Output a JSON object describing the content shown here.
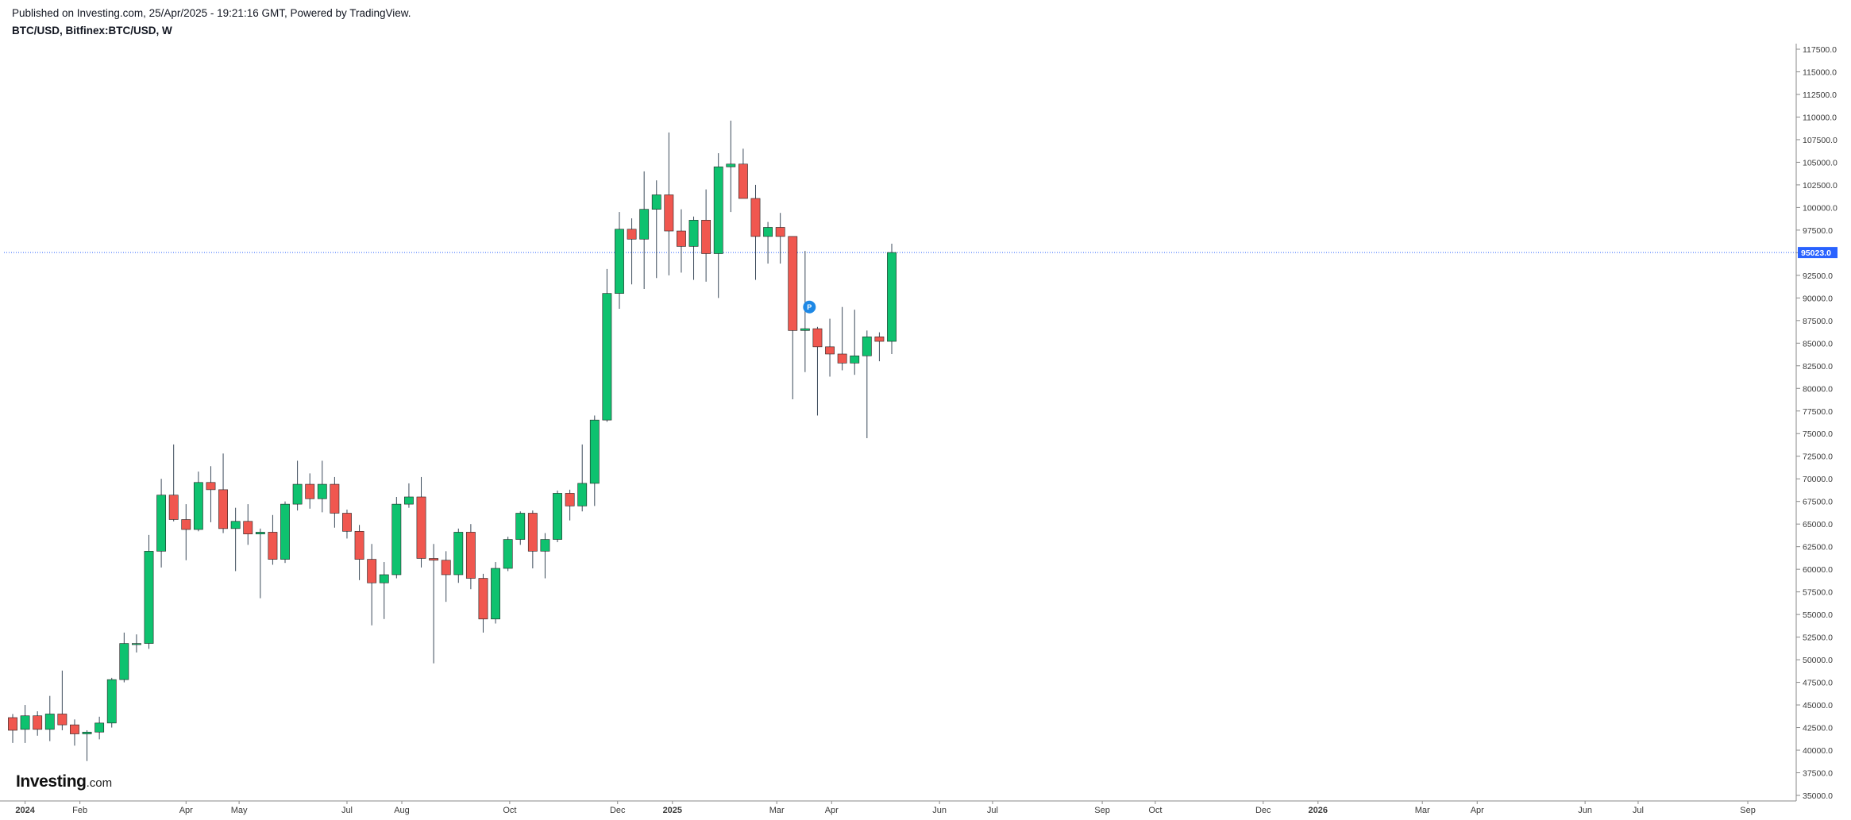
{
  "header": {
    "published": "Published on Investing.com, 25/Apr/2025 - 19:21:16 GMT, Powered by TradingView.",
    "symbol": "BTC/USD, Bitfinex:BTC/USD, W"
  },
  "logo": {
    "main": "Investing",
    "suffix": ".com"
  },
  "colors": {
    "up": "#0ec26f",
    "down": "#f0574f",
    "wick": "#3b4a5a",
    "price_line": "#2962ff",
    "price_tag": "#2962ff",
    "marker": "#1e88e5",
    "axis": "#8a8a8a"
  },
  "marker": {
    "label": "P",
    "date": "2025-03-10",
    "price": 89000
  },
  "chart_data": {
    "type": "candlestick",
    "interval": "W",
    "ylim": [
      34000,
      118500
    ],
    "ytick_step": 2500,
    "yticks_from": 35000,
    "yticks_to": 117500,
    "last_price": 95023,
    "last_price_label": "95023.0",
    "x_start": "2023-12-25",
    "x_end": "2026-09-14",
    "x_labels": [
      {
        "date": "2024-01-01",
        "text": "2024",
        "year": true
      },
      {
        "date": "2024-02-01",
        "text": "Feb"
      },
      {
        "date": "2024-04-01",
        "text": "Apr"
      },
      {
        "date": "2024-05-01",
        "text": "May"
      },
      {
        "date": "2024-07-01",
        "text": "Jul"
      },
      {
        "date": "2024-08-01",
        "text": "Aug"
      },
      {
        "date": "2024-10-01",
        "text": "Oct"
      },
      {
        "date": "2024-12-01",
        "text": "Dec"
      },
      {
        "date": "2025-01-01",
        "text": "2025",
        "year": true
      },
      {
        "date": "2025-03-01",
        "text": "Mar"
      },
      {
        "date": "2025-04-01",
        "text": "Apr"
      },
      {
        "date": "2025-06-01",
        "text": "Jun"
      },
      {
        "date": "2025-07-01",
        "text": "Jul"
      },
      {
        "date": "2025-09-01",
        "text": "Sep"
      },
      {
        "date": "2025-10-01",
        "text": "Oct"
      },
      {
        "date": "2025-12-01",
        "text": "Dec"
      },
      {
        "date": "2026-01-01",
        "text": "2026",
        "year": true
      },
      {
        "date": "2026-03-01",
        "text": "Mar"
      },
      {
        "date": "2026-04-01",
        "text": "Apr"
      },
      {
        "date": "2026-06-01",
        "text": "Jun"
      },
      {
        "date": "2026-07-01",
        "text": "Jul"
      },
      {
        "date": "2026-09-01",
        "text": "Sep"
      }
    ],
    "candles": [
      {
        "date": "2023-12-25",
        "o": 43600,
        "h": 44000,
        "l": 40800,
        "c": 42200
      },
      {
        "date": "2024-01-01",
        "o": 42300,
        "h": 45000,
        "l": 40800,
        "c": 43800
      },
      {
        "date": "2024-01-08",
        "o": 43800,
        "h": 44300,
        "l": 41600,
        "c": 42300
      },
      {
        "date": "2024-01-15",
        "o": 42300,
        "h": 46000,
        "l": 41000,
        "c": 44000
      },
      {
        "date": "2024-01-22",
        "o": 44000,
        "h": 48800,
        "l": 42200,
        "c": 42800
      },
      {
        "date": "2024-01-29",
        "o": 42800,
        "h": 43400,
        "l": 40500,
        "c": 41800
      },
      {
        "date": "2024-02-05",
        "o": 41800,
        "h": 42200,
        "l": 38800,
        "c": 42000
      },
      {
        "date": "2024-02-12",
        "o": 42000,
        "h": 43700,
        "l": 41200,
        "c": 43000
      },
      {
        "date": "2024-02-19",
        "o": 43000,
        "h": 48000,
        "l": 42500,
        "c": 47800
      },
      {
        "date": "2024-02-26",
        "o": 47800,
        "h": 53000,
        "l": 47500,
        "c": 51800
      },
      {
        "date": "2024-03-04",
        "o": 51800,
        "h": 52800,
        "l": 50800,
        "c": 51800
      },
      {
        "date": "2024-03-11",
        "o": 51800,
        "h": 63800,
        "l": 51200,
        "c": 62000
      },
      {
        "date": "2024-03-18",
        "o": 62000,
        "h": 70000,
        "l": 60200,
        "c": 68200
      },
      {
        "date": "2024-03-25",
        "o": 68200,
        "h": 73800,
        "l": 65300,
        "c": 65500
      },
      {
        "date": "2024-04-01",
        "o": 65500,
        "h": 67200,
        "l": 61000,
        "c": 64400
      },
      {
        "date": "2024-04-08",
        "o": 64400,
        "h": 70800,
        "l": 64200,
        "c": 69600
      },
      {
        "date": "2024-04-15",
        "o": 69600,
        "h": 71400,
        "l": 65200,
        "c": 68800
      },
      {
        "date": "2024-04-22",
        "o": 68800,
        "h": 72800,
        "l": 64000,
        "c": 64500
      },
      {
        "date": "2024-04-29",
        "o": 64500,
        "h": 66800,
        "l": 59800,
        "c": 65300
      },
      {
        "date": "2024-05-06",
        "o": 65300,
        "h": 67200,
        "l": 62700,
        "c": 63900
      },
      {
        "date": "2024-05-13",
        "o": 63900,
        "h": 64500,
        "l": 56800,
        "c": 64100
      },
      {
        "date": "2024-05-20",
        "o": 64100,
        "h": 66000,
        "l": 60500,
        "c": 61100
      },
      {
        "date": "2024-05-27",
        "o": 61100,
        "h": 67500,
        "l": 60700,
        "c": 67200
      },
      {
        "date": "2024-06-03",
        "o": 67200,
        "h": 72000,
        "l": 66500,
        "c": 69400
      },
      {
        "date": "2024-06-10",
        "o": 69400,
        "h": 70600,
        "l": 66700,
        "c": 67800
      },
      {
        "date": "2024-06-17",
        "o": 67800,
        "h": 72000,
        "l": 66300,
        "c": 69400
      },
      {
        "date": "2024-06-24",
        "o": 69400,
        "h": 70200,
        "l": 64600,
        "c": 66200
      },
      {
        "date": "2024-07-01",
        "o": 66200,
        "h": 66600,
        "l": 63400,
        "c": 64200
      },
      {
        "date": "2024-07-08",
        "o": 64200,
        "h": 64900,
        "l": 58800,
        "c": 61100
      },
      {
        "date": "2024-07-15",
        "o": 61100,
        "h": 62800,
        "l": 53800,
        "c": 58500
      },
      {
        "date": "2024-07-22",
        "o": 58500,
        "h": 60800,
        "l": 54500,
        "c": 59400
      },
      {
        "date": "2024-07-29",
        "o": 59400,
        "h": 68000,
        "l": 59000,
        "c": 67200
      },
      {
        "date": "2024-08-05",
        "o": 67200,
        "h": 69500,
        "l": 66800,
        "c": 68000
      },
      {
        "date": "2024-08-12",
        "o": 68000,
        "h": 70200,
        "l": 60200,
        "c": 61200
      },
      {
        "date": "2024-08-19",
        "o": 61200,
        "h": 62800,
        "l": 49600,
        "c": 61000
      },
      {
        "date": "2024-08-26",
        "o": 61000,
        "h": 62000,
        "l": 56400,
        "c": 59400
      },
      {
        "date": "2024-09-02",
        "o": 59400,
        "h": 64500,
        "l": 58500,
        "c": 64100
      },
      {
        "date": "2024-09-09",
        "o": 64100,
        "h": 65000,
        "l": 57800,
        "c": 59000
      },
      {
        "date": "2024-09-16",
        "o": 59000,
        "h": 59500,
        "l": 53000,
        "c": 54500
      },
      {
        "date": "2024-09-23",
        "o": 54500,
        "h": 60800,
        "l": 54000,
        "c": 60100
      },
      {
        "date": "2024-09-30",
        "o": 60100,
        "h": 63600,
        "l": 59800,
        "c": 63300
      },
      {
        "date": "2024-10-07",
        "o": 63300,
        "h": 66400,
        "l": 62700,
        "c": 66200
      },
      {
        "date": "2024-10-14",
        "o": 66200,
        "h": 66500,
        "l": 60100,
        "c": 62000
      },
      {
        "date": "2024-10-21",
        "o": 62000,
        "h": 64000,
        "l": 59000,
        "c": 63300
      },
      {
        "date": "2024-10-28",
        "o": 63300,
        "h": 68700,
        "l": 63000,
        "c": 68400
      },
      {
        "date": "2024-11-04",
        "o": 68400,
        "h": 68800,
        "l": 65400,
        "c": 67000
      },
      {
        "date": "2024-11-11",
        "o": 67000,
        "h": 73800,
        "l": 66400,
        "c": 69500
      },
      {
        "date": "2024-11-18",
        "o": 69500,
        "h": 77000,
        "l": 67000,
        "c": 76500
      },
      {
        "date": "2024-11-25",
        "o": 76500,
        "h": 93200,
        "l": 76300,
        "c": 90500
      },
      {
        "date": "2024-12-02",
        "o": 90500,
        "h": 99500,
        "l": 88800,
        "c": 97600
      },
      {
        "date": "2024-12-09",
        "o": 97600,
        "h": 98800,
        "l": 91500,
        "c": 96500
      },
      {
        "date": "2024-12-16",
        "o": 96500,
        "h": 104000,
        "l": 91000,
        "c": 99800
      },
      {
        "date": "2024-12-23",
        "o": 99800,
        "h": 103000,
        "l": 92200,
        "c": 101400
      },
      {
        "date": "2024-12-30",
        "o": 101400,
        "h": 108300,
        "l": 92500,
        "c": 97400
      },
      {
        "date": "2025-01-06",
        "o": 97400,
        "h": 99800,
        "l": 92800,
        "c": 95700
      },
      {
        "date": "2025-01-13",
        "o": 95700,
        "h": 99000,
        "l": 92000,
        "c": 98600
      },
      {
        "date": "2025-01-20",
        "o": 98600,
        "h": 102000,
        "l": 91800,
        "c": 94900
      },
      {
        "date": "2025-01-27",
        "o": 94900,
        "h": 106000,
        "l": 90000,
        "c": 104500
      },
      {
        "date": "2025-02-03",
        "o": 104500,
        "h": 109600,
        "l": 99500,
        "c": 104800
      },
      {
        "date": "2025-02-10",
        "o": 104800,
        "h": 106500,
        "l": 101000,
        "c": 101000
      },
      {
        "date": "2025-02-17",
        "o": 101000,
        "h": 102500,
        "l": 92000,
        "c": 96800
      },
      {
        "date": "2025-02-24",
        "o": 96800,
        "h": 98400,
        "l": 93800,
        "c": 97800
      },
      {
        "date": "2025-03-03",
        "o": 97800,
        "h": 99400,
        "l": 93800,
        "c": 96800
      },
      {
        "date": "2025-03-10",
        "o": 96800,
        "h": 96800,
        "l": 78800,
        "c": 86400
      },
      {
        "date": "2025-03-17",
        "o": 86400,
        "h": 95200,
        "l": 81800,
        "c": 86600
      },
      {
        "date": "2025-03-24",
        "o": 86600,
        "h": 86800,
        "l": 77000,
        "c": 84600
      },
      {
        "date": "2025-03-31",
        "o": 84600,
        "h": 87700,
        "l": 81300,
        "c": 83800
      },
      {
        "date": "2025-04-07",
        "o": 83800,
        "h": 89000,
        "l": 82000,
        "c": 82800
      },
      {
        "date": "2025-04-14",
        "o": 82800,
        "h": 88700,
        "l": 81500,
        "c": 83600
      },
      {
        "date": "2025-04-21",
        "o": 83600,
        "h": 86400,
        "l": 74500,
        "c": 85700
      },
      {
        "date": "2025-04-28",
        "o": 85700,
        "h": 86200,
        "l": 83000,
        "c": 85200
      },
      {
        "date": "2025-05-05",
        "o": 85200,
        "h": 96000,
        "l": 83800,
        "c": 95023
      }
    ]
  }
}
